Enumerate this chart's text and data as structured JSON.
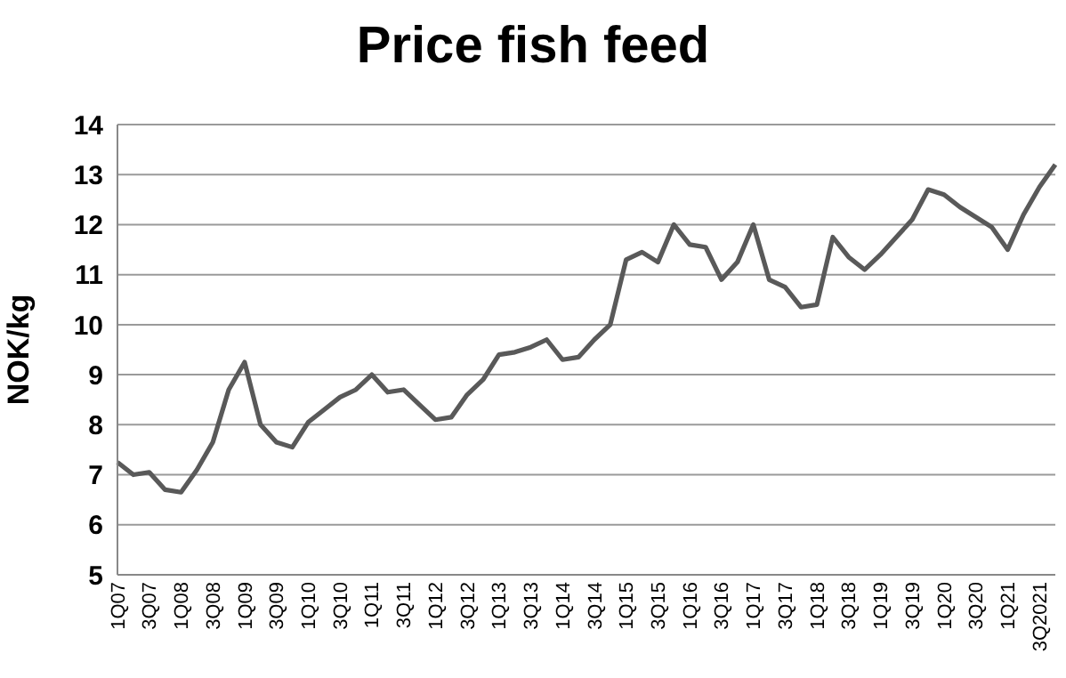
{
  "chart_data": {
    "type": "line",
    "title": "Price fish feed",
    "ylabel": "NOK/kg",
    "categories": [
      "1Q07",
      null,
      "3Q07",
      null,
      "1Q08",
      null,
      "3Q08",
      null,
      "1Q09",
      null,
      "3Q09",
      null,
      "1Q10",
      null,
      "3Q10",
      null,
      "1Q11",
      null,
      "3Q11",
      null,
      "1Q12",
      null,
      "3Q12",
      null,
      "1Q13",
      null,
      "3Q13",
      null,
      "1Q14",
      null,
      "3Q14",
      null,
      "1Q15",
      null,
      "3Q15",
      null,
      "1Q16",
      null,
      "3Q16",
      null,
      "1Q17",
      null,
      "3Q17",
      null,
      "1Q18",
      null,
      "3Q18",
      null,
      "1Q19",
      null,
      "3Q19",
      null,
      "1Q20",
      null,
      "3Q20",
      null,
      "1Q21",
      null,
      "3Q2021",
      null
    ],
    "series": [
      {
        "color": "#595959",
        "values": [
          7.25,
          7.0,
          7.05,
          6.7,
          6.65,
          7.1,
          7.65,
          8.7,
          9.25,
          8.0,
          7.65,
          7.55,
          8.05,
          8.3,
          8.55,
          8.7,
          9.0,
          8.65,
          8.7,
          8.4,
          8.1,
          8.15,
          8.6,
          8.9,
          9.4,
          9.45,
          9.55,
          9.7,
          9.3,
          9.35,
          9.7,
          10.0,
          11.3,
          11.45,
          11.25,
          12.0,
          11.6,
          11.55,
          10.9,
          11.25,
          12.0,
          10.9,
          10.75,
          10.35,
          10.4,
          11.75,
          11.35,
          11.1,
          11.4,
          11.75,
          12.1,
          12.7,
          12.6,
          12.35,
          12.15,
          11.95,
          11.5,
          12.2,
          12.75,
          13.2
        ]
      }
    ],
    "ylim": [
      5,
      14
    ],
    "yticks": [
      5,
      6,
      7,
      8,
      9,
      10,
      11,
      12,
      13,
      14
    ],
    "grid": "y",
    "legend": false,
    "marker": "none",
    "line_style": "solid"
  }
}
